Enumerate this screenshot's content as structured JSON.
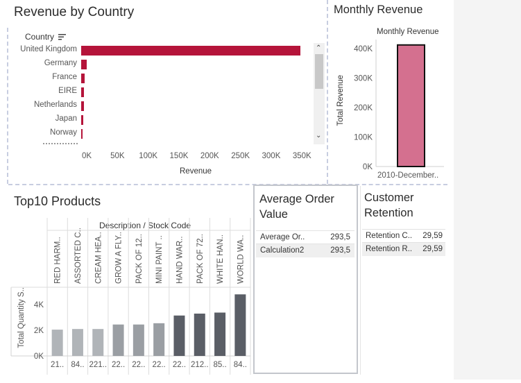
{
  "revenue_by_country": {
    "title": "Revenue by Country",
    "header": "Country",
    "sort_icon": "sort-descending-icon",
    "bar_color": "#b5143a",
    "chart_data": {
      "type": "bar",
      "orientation": "horizontal",
      "categories": [
        "United Kingdom",
        "Germany",
        "France",
        "EIRE",
        "Netherlands",
        "Japan",
        "Norway"
      ],
      "values": [
        357000,
        8500,
        5500,
        4500,
        4000,
        3500,
        1000
      ],
      "xlabel": "Revenue",
      "xlim": [
        0,
        370000
      ],
      "xticks": [
        0,
        50000,
        100000,
        150000,
        200000,
        250000,
        300000,
        350000
      ],
      "xtick_labels": [
        "0K",
        "50K",
        "100K",
        "150K",
        "200K",
        "250K",
        "300K",
        "350K"
      ],
      "grid": false
    }
  },
  "monthly_revenue": {
    "title": "Monthly Revenue",
    "bar_color": "#d4708f",
    "chart_data": {
      "type": "bar",
      "categories": [
        "2010-December.."
      ],
      "series": [
        {
          "name": "Monthly Revenue",
          "values": [
            412000
          ]
        }
      ],
      "ylabel": "Total Revenue",
      "ylim": [
        0,
        435000
      ],
      "yticks": [
        0,
        100000,
        200000,
        300000,
        400000
      ],
      "ytick_labels": [
        "0K",
        "100K",
        "200K",
        "300K",
        "400K"
      ]
    }
  },
  "top10_products": {
    "title": "Top10 Products",
    "header": "Description / Stock Code",
    "chart_data": {
      "type": "bar",
      "categories": [
        "RED HARM..",
        "ASSORTED C..",
        "CREAM HEA..",
        "GROW A FLY..",
        "PACK OF 12..",
        "MINI PAINT ..",
        "HAND WAR..",
        "PACK OF 72..",
        "WHITE HAN..",
        "WORLD WA.."
      ],
      "stock_codes": [
        "21..",
        "84..",
        "221..",
        "22..",
        "22..",
        "22..",
        "22..",
        "212..",
        "85..",
        "84.."
      ],
      "values": [
        2050,
        2100,
        2100,
        2450,
        2450,
        2550,
        3150,
        3300,
        3380,
        4800
      ],
      "colors": [
        "#b0b4b8",
        "#b0b4b8",
        "#b0b4b8",
        "#9a9ea3",
        "#9a9ea3",
        "#9a9ea3",
        "#5a5e66",
        "#5a5e66",
        "#5a5e66",
        "#5a5e66"
      ],
      "ylabel": "Total Quantity S..",
      "ylim": [
        0,
        5300
      ],
      "yticks": [
        0,
        2000,
        4000
      ],
      "ytick_labels": [
        "0K",
        "2K",
        "4K"
      ]
    }
  },
  "average_order_value": {
    "title": "Average Order Value",
    "rows": [
      {
        "label": "Average Or..",
        "value": "293,5"
      },
      {
        "label": "Calculation2",
        "value": "293,5"
      }
    ]
  },
  "customer_retention": {
    "title": "Customer Retention",
    "rows": [
      {
        "label": "Retention C..",
        "value": "29,59"
      },
      {
        "label": "Retention R..",
        "value": "29,59"
      }
    ]
  }
}
